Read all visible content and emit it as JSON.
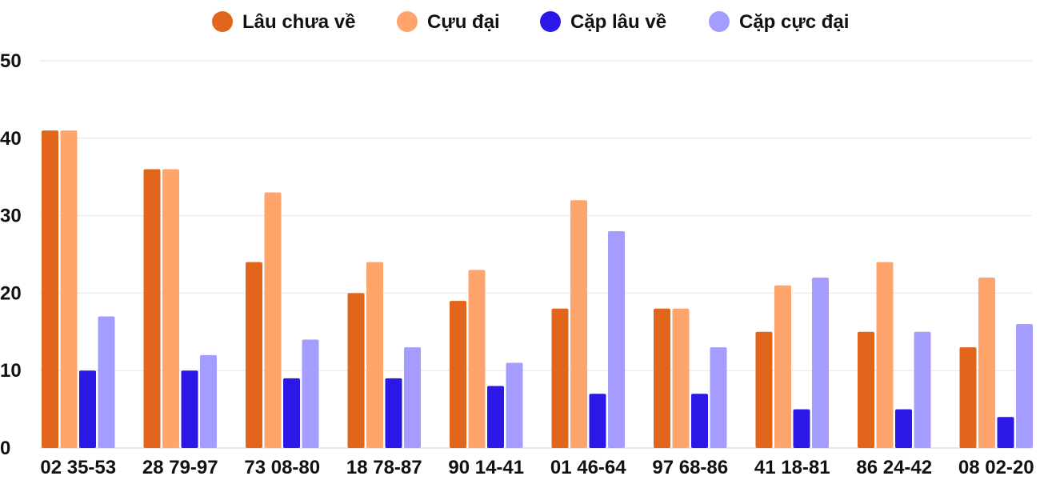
{
  "chart_data": {
    "type": "bar",
    "title": "",
    "xlabel": "",
    "ylabel": "",
    "ylim": [
      0,
      50
    ],
    "yticks": [
      0,
      10,
      20,
      30,
      40,
      50
    ],
    "grid": true,
    "legend_position": "top",
    "categories": [
      "02 35-53",
      "28 79-97",
      "73 08-80",
      "18 78-87",
      "90 14-41",
      "01 46-64",
      "97 68-86",
      "41 18-81",
      "86 24-42",
      "08 02-20"
    ],
    "series": [
      {
        "name": "Lâu chưa về",
        "color": "#e1661b",
        "values": [
          41,
          36,
          24,
          20,
          19,
          18,
          18,
          15,
          15,
          13
        ]
      },
      {
        "name": "Cựu đại",
        "color": "#ffa46b",
        "values": [
          41,
          36,
          33,
          24,
          23,
          32,
          18,
          21,
          24,
          22
        ]
      },
      {
        "name": "Cặp lâu về",
        "color": "#2b17e6",
        "values": [
          10,
          10,
          9,
          9,
          8,
          7,
          7,
          5,
          5,
          4
        ]
      },
      {
        "name": "Cặp cực đại",
        "color": "#a49cff",
        "values": [
          17,
          12,
          14,
          13,
          11,
          28,
          13,
          22,
          15,
          16
        ]
      }
    ]
  }
}
